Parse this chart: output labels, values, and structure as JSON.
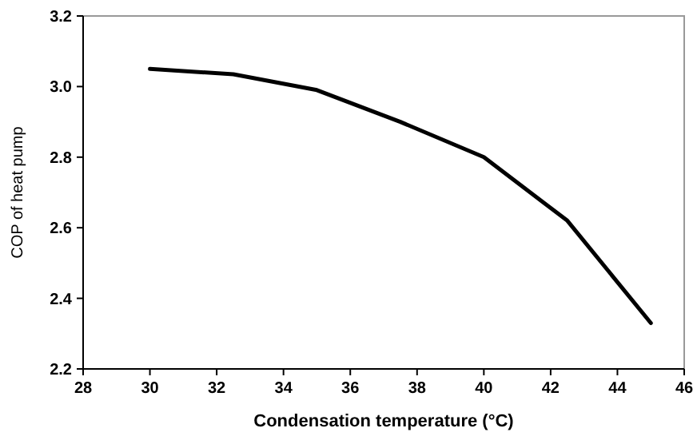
{
  "chart_data": {
    "type": "line",
    "xlabel": "Condensation temperature (°C)",
    "ylabel": "COP of heat pump",
    "x": [
      30,
      32.5,
      35,
      37.5,
      40,
      42.5,
      45
    ],
    "series": [
      {
        "color": "#000000",
        "values": [
          3.05,
          3.035,
          2.99,
          2.9,
          2.8,
          2.62,
          2.33
        ]
      }
    ],
    "xlim": [
      28,
      46
    ],
    "xticks": [
      28,
      30,
      32,
      34,
      36,
      38,
      40,
      42,
      44,
      46
    ],
    "ylim": [
      2.2,
      3.2
    ],
    "yticks": [
      {
        "value": 2.2,
        "label": "2.2"
      },
      {
        "value": 2.4,
        "label": "2.4"
      },
      {
        "value": 2.6,
        "label": "2.6"
      },
      {
        "value": 2.8,
        "label": "2.8"
      },
      {
        "value": 3.0,
        "label": "3.0"
      },
      {
        "value": 3.2,
        "label": "3.2"
      }
    ],
    "grid": false,
    "marker": "none",
    "line_style": "solid"
  }
}
